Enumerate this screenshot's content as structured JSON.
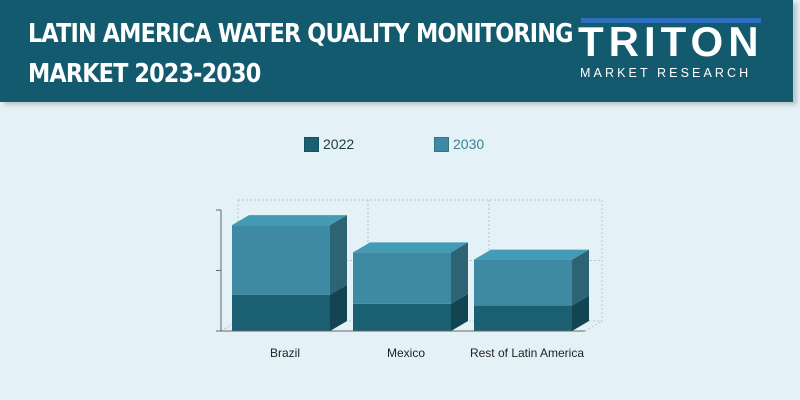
{
  "header": {
    "title_line1": "LATIN AMERICA WATER QUALITY MONITORING",
    "title_line2": "MARKET 2023-2030",
    "logo_word": "TRITON",
    "logo_sub": "MARKET RESEARCH"
  },
  "colors": {
    "header_bg": "#145a6e",
    "series_2022": "#1b5f72",
    "series_2030": "#3d8aa2",
    "background": "#e4f2f7"
  },
  "chart_data": {
    "type": "bar",
    "stacked": true,
    "style": "3d",
    "categories": [
      "Brazil",
      "Mexico",
      "Rest of Latin America"
    ],
    "series": [
      {
        "name": "2022",
        "values": [
          0.6,
          0.45,
          0.42
        ]
      },
      {
        "name": "2030",
        "values": [
          1.15,
          0.85,
          0.76
        ]
      }
    ],
    "ylim": [
      0,
      2
    ],
    "grid": true,
    "legend_position": "top",
    "title": "",
    "xlabel": "",
    "ylabel": ""
  }
}
